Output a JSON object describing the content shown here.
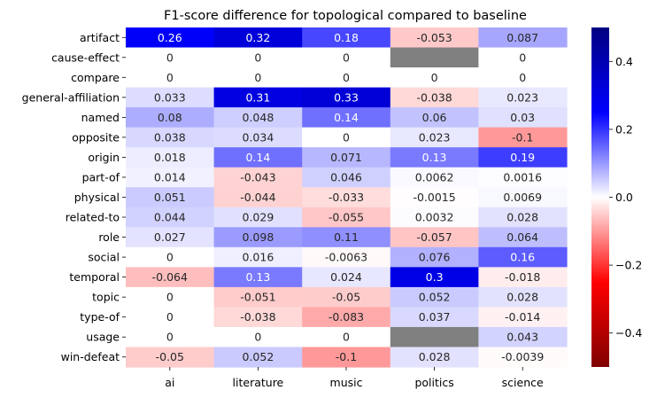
{
  "chart_data": {
    "type": "heatmap",
    "title": "F1-score difference for topological compared to baseline",
    "xlabel": "",
    "ylabel": "",
    "columns": [
      "ai",
      "literature",
      "music",
      "politics",
      "science"
    ],
    "rows": [
      "artifact",
      "cause-effect",
      "compare",
      "general-affiliation",
      "named",
      "opposite",
      "origin",
      "part-of",
      "physical",
      "related-to",
      "role",
      "social",
      "temporal",
      "topic",
      "type-of",
      "usage",
      "win-defeat"
    ],
    "values": [
      [
        0.26,
        0.32,
        0.18,
        -0.053,
        0.087
      ],
      [
        0,
        0,
        0,
        null,
        0
      ],
      [
        0,
        0,
        0,
        0,
        0
      ],
      [
        0.033,
        0.31,
        0.33,
        -0.038,
        0.023
      ],
      [
        0.08,
        0.048,
        0.14,
        0.06,
        0.03
      ],
      [
        0.038,
        0.034,
        0,
        0.023,
        -0.1
      ],
      [
        0.018,
        0.14,
        0.071,
        0.13,
        0.19
      ],
      [
        0.014,
        -0.043,
        0.046,
        0.0062,
        0.0016
      ],
      [
        0.051,
        -0.044,
        -0.033,
        -0.0015,
        0.0069
      ],
      [
        0.044,
        0.029,
        -0.055,
        0.0032,
        0.028
      ],
      [
        0.027,
        0.098,
        0.11,
        -0.057,
        0.064
      ],
      [
        0,
        0.016,
        -0.0063,
        0.076,
        0.16
      ],
      [
        -0.064,
        0.13,
        0.024,
        0.3,
        -0.018
      ],
      [
        0,
        -0.051,
        -0.05,
        0.052,
        0.028
      ],
      [
        0,
        -0.038,
        -0.083,
        0.037,
        -0.014
      ],
      [
        0,
        0,
        0,
        null,
        0.043
      ],
      [
        -0.05,
        0.052,
        -0.1,
        0.028,
        -0.0039
      ]
    ],
    "labels": [
      [
        "0.26",
        "0.32",
        "0.18",
        "-0.053",
        "0.087"
      ],
      [
        "0",
        "0",
        "0",
        "",
        "0"
      ],
      [
        "0",
        "0",
        "0",
        "0",
        "0"
      ],
      [
        "0.033",
        "0.31",
        "0.33",
        "-0.038",
        "0.023"
      ],
      [
        "0.08",
        "0.048",
        "0.14",
        "0.06",
        "0.03"
      ],
      [
        "0.038",
        "0.034",
        "0",
        "0.023",
        "-0.1"
      ],
      [
        "0.018",
        "0.14",
        "0.071",
        "0.13",
        "0.19"
      ],
      [
        "0.014",
        "-0.043",
        "0.046",
        "0.0062",
        "0.0016"
      ],
      [
        "0.051",
        "-0.044",
        "-0.033",
        "-0.0015",
        "0.0069"
      ],
      [
        "0.044",
        "0.029",
        "-0.055",
        "0.0032",
        "0.028"
      ],
      [
        "0.027",
        "0.098",
        "0.11",
        "-0.057",
        "0.064"
      ],
      [
        "0",
        "0.016",
        "-0.0063",
        "0.076",
        "0.16"
      ],
      [
        "-0.064",
        "0.13",
        "0.024",
        "0.3",
        "-0.018"
      ],
      [
        "0",
        "-0.051",
        "-0.05",
        "0.052",
        "0.028"
      ],
      [
        "0",
        "-0.038",
        "-0.083",
        "0.037",
        "-0.014"
      ],
      [
        "0",
        "0",
        "0",
        "",
        "0.043"
      ],
      [
        "-0.05",
        "0.052",
        "-0.1",
        "0.028",
        "-0.0039"
      ]
    ],
    "colorbar": {
      "colormap": "seismic_r",
      "vmin": -0.5,
      "vmax": 0.5,
      "ticks": [
        -0.4,
        -0.2,
        0.0,
        0.2,
        0.4
      ],
      "tick_labels": [
        "−0.4",
        "−0.2",
        "0.0",
        "0.2",
        "0.4"
      ]
    },
    "missing_color": "#808080",
    "grid": false
  }
}
